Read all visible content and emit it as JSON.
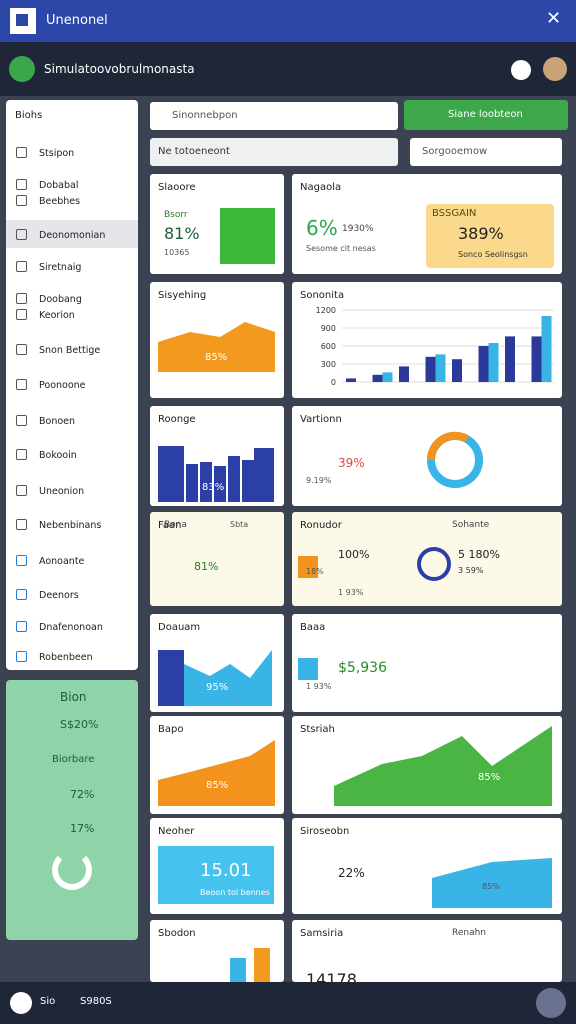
{
  "app_bar": {
    "title": "Unenonel"
  },
  "toolbar": {
    "title": "Simulatoovobrulmonasta"
  },
  "sidebar": {
    "title": "Biohs",
    "items": [
      "Stsipon",
      "Dobabal",
      "Beebhes",
      "Deonomonian",
      "Siretnaig",
      "Doobang",
      "Keorion",
      "Snon Bettige",
      "Poonoone",
      "Bonoen",
      "Bokooin",
      "Uneonion",
      "Nebenbinans",
      "Aonoante",
      "Deenors",
      "Dnafenonoan",
      "Robenbeen"
    ]
  },
  "green_panel": {
    "items": [
      "Bion",
      "S$20%",
      "Biorbare",
      "72%",
      "17%"
    ]
  },
  "search": {
    "placeholder": "Sinonnebpon",
    "button": "Siane loobteon",
    "filter": "Ne totoeneont",
    "search2": "Sorgooemow"
  },
  "cards": [
    {
      "title": "Slaoore",
      "label": "Bsorr",
      "value": "81%",
      "sub": "10365"
    },
    {
      "title": "Sisyehing",
      "value": "85%"
    },
    {
      "title": "Roonge",
      "value": "83%"
    },
    {
      "title": "Faan",
      "label": "Bona",
      "note": "Sbta",
      "value": "81%"
    },
    {
      "title": "Doauam",
      "value": "95%"
    },
    {
      "title": "Bapo",
      "value": "85%"
    },
    {
      "title": "Neoher",
      "value": "15.01",
      "sub": "Beoon tol bennes"
    },
    {
      "title": "Sbodon"
    },
    {
      "title": "Nagaola",
      "value": "6%",
      "label": "1930%",
      "sub": "Sesome cit nesas",
      "box_title": "BSSGAIN",
      "box_value": "389%",
      "box_sub": "Sonco Seolinsgsn"
    },
    {
      "title": "Sononita",
      "chart": {
        "ylim": [
          0,
          1300
        ],
        "yticks": [
          0,
          300,
          600,
          900,
          1200
        ],
        "series": [
          {
            "color": "#2b3a9a",
            "values": [
              60,
              120,
              260,
              420,
              380,
              600,
              760,
              760
            ]
          },
          {
            "color": "#38b4e6",
            "values": [
              0,
              160,
              0,
              460,
              0,
              650,
              0,
              1100
            ]
          }
        ]
      }
    },
    {
      "title": "Vartionn",
      "value": "39%",
      "sub": "9.19%"
    },
    {
      "title": "Ronudor",
      "label": "Sohante",
      "value": "100%",
      "sub": "18%",
      "note": "1 93%",
      "box_value": "5 180%",
      "box_sub": "3 59%"
    },
    {
      "title": "Baaa",
      "value": "$5,936",
      "sub": "1 93%"
    },
    {
      "title": "Stsriah",
      "value": "85%"
    },
    {
      "title": "Siroseobn",
      "value": "22%",
      "sub": "85%"
    },
    {
      "title": "Samsiria",
      "label": "Renahn",
      "value": "14178"
    }
  ],
  "bottom_bar": {
    "label": "Sio",
    "status": "S980S"
  }
}
